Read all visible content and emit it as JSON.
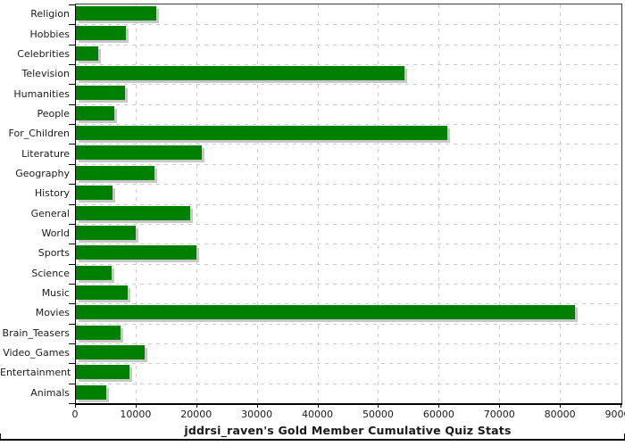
{
  "chart_data": {
    "type": "bar",
    "orientation": "horizontal",
    "title": "jddrsi_raven's Gold Member Cumulative Quiz Stats",
    "categories": [
      "Religion",
      "Hobbies",
      "Celebrities",
      "Television",
      "Humanities",
      "People",
      "For_Children",
      "Literature",
      "Geography",
      "History",
      "General",
      "World",
      "Sports",
      "Science",
      "Music",
      "Movies",
      "Brain_Teasers",
      "Video_Games",
      "Entertainment",
      "Animals"
    ],
    "values": [
      13200,
      8300,
      3700,
      54200,
      8100,
      6300,
      61300,
      20800,
      13000,
      6000,
      18900,
      9900,
      19900,
      5900,
      8500,
      82300,
      7400,
      11400,
      8900,
      5000
    ],
    "xlabel": "",
    "ylabel": "",
    "xlim": [
      0,
      90000
    ],
    "x_ticks": [
      0,
      10000,
      20000,
      30000,
      40000,
      50000,
      60000,
      70000,
      80000,
      90000
    ],
    "x_tick_labels": [
      "0",
      "10000",
      "20000",
      "30000",
      "40000",
      "50000",
      "60000",
      "70000",
      "80000",
      "90000"
    ],
    "grid": "dashed-both-axes",
    "legend": "none",
    "colors": {
      "bar": "#008000",
      "bar_shadow": "#c8c8c8",
      "gridline": "#cccccc",
      "plot_border": "#3a3a3a",
      "axis": "#000000",
      "text": "#1a1a1a",
      "background": "#ffffff",
      "bottom_rule": "#111111"
    }
  }
}
